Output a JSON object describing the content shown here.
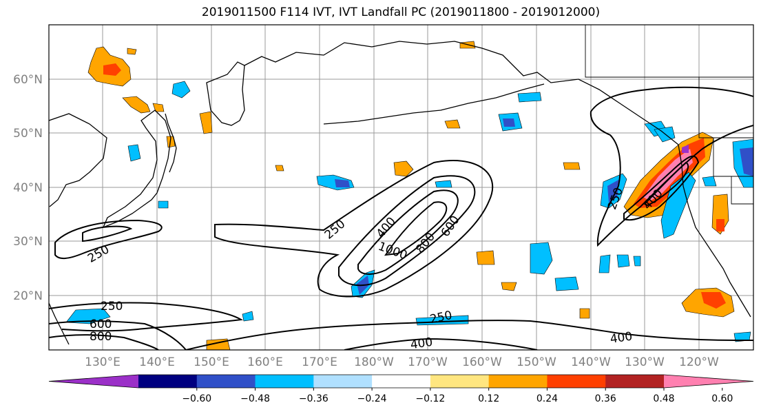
{
  "title": "2019011500 F114 IVT, IVT Landfall PC (2019011800 - 2019012000)",
  "lat_labels": [
    "60°N",
    "50°N",
    "40°N",
    "30°N",
    "20°N"
  ],
  "lon_labels": [
    "130°E",
    "140°E",
    "150°E",
    "160°E",
    "170°E",
    "180°W",
    "170°W",
    "160°W",
    "150°W",
    "140°W",
    "130°W",
    "120°W"
  ],
  "contour_labels": [
    "250",
    "250",
    "250",
    "250",
    "250",
    "400",
    "400",
    "400",
    "400",
    "600",
    "600",
    "800",
    "800",
    "1000"
  ],
  "colorbar": {
    "colors": [
      "#9b30c8",
      "#000080",
      "#3050c8",
      "#00bfff",
      "#b0e0ff",
      "#ffffff",
      "#ffe680",
      "#ffa500",
      "#ff4000",
      "#b22222",
      "#ff80b0"
    ],
    "ticks": [
      "−0.60",
      "−0.48",
      "−0.36",
      "−0.24",
      "−0.12",
      "0.12",
      "0.24",
      "0.36",
      "0.48",
      "0.60"
    ]
  }
}
